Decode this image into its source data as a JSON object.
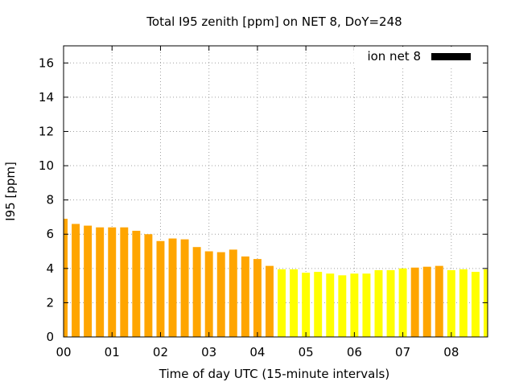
{
  "chart_data": {
    "type": "bar",
    "title": "Total I95 zenith [ppm] on NET 8, DoY=248",
    "xlabel": "Time of day UTC (15-minute intervals)",
    "ylabel": "I95 [ppm]",
    "ylim": [
      0,
      17
    ],
    "y_ticks": [
      0,
      2,
      4,
      6,
      8,
      10,
      12,
      14,
      16
    ],
    "x_tick_labels": [
      "00",
      "01",
      "02",
      "03",
      "04",
      "05",
      "06",
      "07",
      "08"
    ],
    "x_range_hours": [
      0,
      8.75
    ],
    "grid": true,
    "legend": {
      "label": "ion net 8",
      "color": "#000000",
      "position": "top-right"
    },
    "colors": {
      "orange": "#ffa500",
      "yellow": "#ffff00"
    },
    "series": [
      {
        "values": [
          6.9,
          6.6,
          6.5,
          6.4,
          6.4,
          6.4,
          6.2,
          6.0,
          5.6,
          5.75,
          5.7,
          5.25,
          5.0,
          4.95,
          5.1,
          4.7,
          4.55,
          4.15,
          3.95,
          3.95,
          3.75,
          3.8,
          3.7,
          3.6,
          3.7,
          3.7,
          3.9,
          3.9,
          4.0,
          4.05,
          4.1,
          4.15,
          3.9,
          3.95,
          3.8,
          3.95
        ],
        "colors": [
          "orange",
          "orange",
          "orange",
          "orange",
          "orange",
          "orange",
          "orange",
          "orange",
          "orange",
          "orange",
          "orange",
          "orange",
          "orange",
          "orange",
          "orange",
          "orange",
          "orange",
          "orange",
          "yellow",
          "yellow",
          "yellow",
          "yellow",
          "yellow",
          "yellow",
          "yellow",
          "yellow",
          "yellow",
          "yellow",
          "yellow",
          "orange",
          "orange",
          "orange",
          "yellow",
          "yellow",
          "yellow",
          "yellow"
        ]
      }
    ]
  }
}
